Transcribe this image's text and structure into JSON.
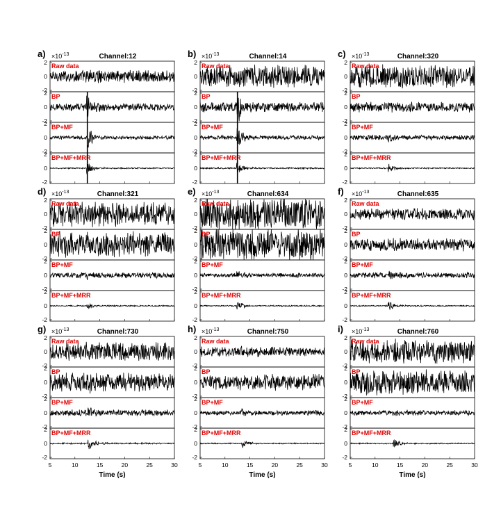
{
  "chart_data": {
    "type": "line",
    "description_note": "",
    "scale_note": "×10",
    "scale_exponent": "-13",
    "x_label": "Time (s)",
    "x_range": [
      5,
      30
    ],
    "x_ticks": [
      "5",
      "10",
      "15",
      "20",
      "25",
      "30"
    ],
    "y_range": [
      -2.2,
      2.2
    ],
    "y_ticks": [
      "2",
      "0",
      "-2"
    ],
    "series_labels": [
      "Raw data",
      "BP",
      "BP+MF",
      "BP+MF+MRR"
    ],
    "panels": [
      {
        "letter": "a)",
        "title": "Channel:12",
        "event_time": 12.5,
        "noise": [
          1.0,
          0.6,
          0.3,
          0.1
        ],
        "event_amp": [
          0.5,
          1.9,
          1.5,
          0.9
        ],
        "vline": true
      },
      {
        "letter": "b)",
        "title": "Channel:14",
        "event_time": 12.5,
        "noise": [
          1.8,
          0.8,
          0.35,
          0.12
        ],
        "event_amp": [
          0.4,
          1.9,
          1.5,
          0.9
        ],
        "vline": true
      },
      {
        "letter": "c)",
        "title": "Channel:320",
        "event_time": 12.8,
        "noise": [
          1.8,
          0.8,
          0.4,
          0.1
        ],
        "event_amp": [
          0.2,
          0.3,
          0.5,
          0.6
        ],
        "vline": false
      },
      {
        "letter": "d)",
        "title": "Channel:321",
        "event_time": 12.5,
        "noise": [
          2.0,
          2.0,
          0.45,
          0.1
        ],
        "event_amp": [
          0.2,
          0.3,
          0.5,
          0.5
        ],
        "vline": false
      },
      {
        "letter": "e)",
        "title": "Channel:634",
        "event_time": 12.5,
        "noise": [
          2.6,
          2.6,
          0.35,
          0.1
        ],
        "event_amp": [
          0.2,
          0.3,
          0.6,
          0.7
        ],
        "vline": false
      },
      {
        "letter": "f)",
        "title": "Channel:635",
        "event_time": 12.8,
        "noise": [
          0.9,
          1.0,
          0.45,
          0.1
        ],
        "event_amp": [
          0.2,
          0.3,
          0.6,
          0.7
        ],
        "vline": false
      },
      {
        "letter": "g)",
        "title": "Channel:730",
        "event_time": 12.8,
        "noise": [
          1.5,
          1.5,
          0.5,
          0.12
        ],
        "event_amp": [
          0.3,
          0.6,
          0.9,
          0.9
        ],
        "vline": false
      },
      {
        "letter": "h)",
        "title": "Channel:750",
        "event_time": 13.5,
        "noise": [
          0.8,
          1.3,
          0.4,
          0.1
        ],
        "event_amp": [
          0.2,
          0.3,
          0.5,
          0.6
        ],
        "vline": false
      },
      {
        "letter": "i)",
        "title": "Channel:760",
        "event_time": 13.8,
        "noise": [
          1.9,
          2.0,
          0.4,
          0.1
        ],
        "event_amp": [
          0.2,
          0.3,
          0.5,
          0.6
        ],
        "vline": false
      }
    ]
  }
}
